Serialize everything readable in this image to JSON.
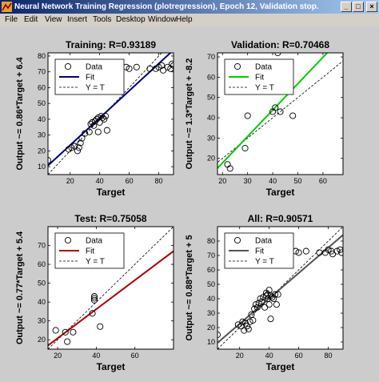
{
  "window": {
    "title": "Neural Network Training Regression (plotregression), Epoch 12, Validation stop.",
    "minimize_icon": "minimize-icon",
    "maximize_icon": "maximize-icon",
    "close_icon": "close-icon"
  },
  "menu": {
    "items": [
      "File",
      "Edit",
      "View",
      "Insert",
      "Tools",
      "Desktop",
      "Window",
      "Help"
    ]
  },
  "colors": {
    "training": "#000080",
    "validation": "#00cc00",
    "test": "#b00000",
    "all": "#555555"
  },
  "legend": {
    "data": "Data",
    "fit": "Fit",
    "yt": "Y = T"
  },
  "chart_data": [
    {
      "type": "scatter",
      "title": "Training: R=0.93189",
      "xlabel": "Target",
      "ylabel": "Output ~= 0.86*Target + 6.4",
      "xlim": [
        5,
        90
      ],
      "ylim": [
        5,
        82
      ],
      "xticks": [
        20,
        40,
        60,
        80
      ],
      "yticks": [
        10,
        20,
        30,
        40,
        50,
        60,
        70,
        80
      ],
      "fit": {
        "slope": 0.86,
        "intercept": 6.4,
        "name": "Fit"
      },
      "legend_position": "top-left",
      "points": [
        [
          5,
          14
        ],
        [
          19,
          21
        ],
        [
          21,
          22
        ],
        [
          23,
          23
        ],
        [
          25,
          20
        ],
        [
          26,
          22
        ],
        [
          27,
          25
        ],
        [
          28,
          28
        ],
        [
          30,
          31
        ],
        [
          33,
          32
        ],
        [
          34,
          37
        ],
        [
          35,
          38
        ],
        [
          36,
          36
        ],
        [
          37,
          39
        ],
        [
          38,
          40
        ],
        [
          39,
          32
        ],
        [
          39,
          41
        ],
        [
          40,
          38
        ],
        [
          41,
          42
        ],
        [
          42,
          41
        ],
        [
          43,
          40
        ],
        [
          44,
          42
        ],
        [
          45,
          33
        ],
        [
          47,
          71
        ],
        [
          58,
          73
        ],
        [
          60,
          72
        ],
        [
          65,
          73
        ],
        [
          74,
          72
        ],
        [
          78,
          72
        ],
        [
          80,
          73
        ],
        [
          82,
          74
        ],
        [
          83,
          71
        ],
        [
          86,
          73
        ],
        [
          88,
          72
        ],
        [
          89,
          75
        ],
        [
          90,
          74
        ]
      ]
    },
    {
      "type": "scatter",
      "title": "Validation: R=0.70468",
      "xlabel": "Target",
      "ylabel": "Output ~= 1.3*Target + -8.2",
      "xlim": [
        18,
        68
      ],
      "ylim": [
        12,
        72
      ],
      "xticks": [
        20,
        30,
        40,
        50,
        60
      ],
      "yticks": [
        20,
        30,
        40,
        50,
        60,
        70
      ],
      "fit": {
        "slope": 1.3,
        "intercept": -8.2,
        "name": "Fit"
      },
      "legend_position": "top-left",
      "points": [
        [
          22,
          17
        ],
        [
          23,
          15
        ],
        [
          29,
          25
        ],
        [
          30,
          41
        ],
        [
          40,
          43
        ],
        [
          41,
          45
        ],
        [
          42,
          72
        ],
        [
          43,
          43
        ],
        [
          48,
          41
        ]
      ]
    },
    {
      "type": "scatter",
      "title": "Test: R=0.75058",
      "xlabel": "Target",
      "ylabel": "Output ~= 0.77*Target + 5.4",
      "xlim": [
        15,
        80
      ],
      "ylim": [
        15,
        80
      ],
      "xticks": [
        20,
        40,
        60
      ],
      "yticks": [
        20,
        30,
        40,
        50,
        60,
        70
      ],
      "fit": {
        "slope": 0.77,
        "intercept": 5.4,
        "name": "Fit"
      },
      "legend_position": "top-left",
      "points": [
        [
          19,
          25
        ],
        [
          24,
          24
        ],
        [
          25,
          19
        ],
        [
          28,
          24
        ],
        [
          38,
          34
        ],
        [
          39,
          41
        ],
        [
          39,
          42
        ],
        [
          39,
          43
        ],
        [
          42,
          27
        ]
      ]
    },
    {
      "type": "scatter",
      "title": "All: R=0.90571",
      "xlabel": "Target",
      "ylabel": "Output ~= 0.88*Target + 5",
      "xlim": [
        5,
        90
      ],
      "ylim": [
        5,
        90
      ],
      "xticks": [
        20,
        40,
        60,
        80
      ],
      "yticks": [
        10,
        20,
        30,
        40,
        50,
        60,
        70,
        80
      ],
      "fit": {
        "slope": 0.88,
        "intercept": 5,
        "name": "Fit"
      },
      "legend_position": "top-left",
      "points": [
        [
          5,
          15
        ],
        [
          19,
          22
        ],
        [
          21,
          21
        ],
        [
          22,
          24
        ],
        [
          23,
          18
        ],
        [
          24,
          23
        ],
        [
          25,
          21
        ],
        [
          26,
          19
        ],
        [
          27,
          24
        ],
        [
          28,
          29
        ],
        [
          29,
          25
        ],
        [
          30,
          33
        ],
        [
          31,
          36
        ],
        [
          32,
          34
        ],
        [
          33,
          37
        ],
        [
          34,
          40
        ],
        [
          35,
          38
        ],
        [
          36,
          41
        ],
        [
          37,
          34
        ],
        [
          38,
          42
        ],
        [
          38,
          44
        ],
        [
          39,
          40
        ],
        [
          39,
          43
        ],
        [
          40,
          36
        ],
        [
          40,
          46
        ],
        [
          41,
          42
        ],
        [
          41,
          26
        ],
        [
          42,
          41
        ],
        [
          43,
          40
        ],
        [
          44,
          43
        ],
        [
          45,
          36
        ],
        [
          46,
          43
        ],
        [
          47,
          71
        ],
        [
          58,
          73
        ],
        [
          60,
          72
        ],
        [
          65,
          73
        ],
        [
          74,
          72
        ],
        [
          78,
          72
        ],
        [
          80,
          74
        ],
        [
          82,
          73
        ],
        [
          83,
          71
        ],
        [
          86,
          73
        ],
        [
          88,
          74
        ],
        [
          89,
          72
        ]
      ]
    }
  ]
}
